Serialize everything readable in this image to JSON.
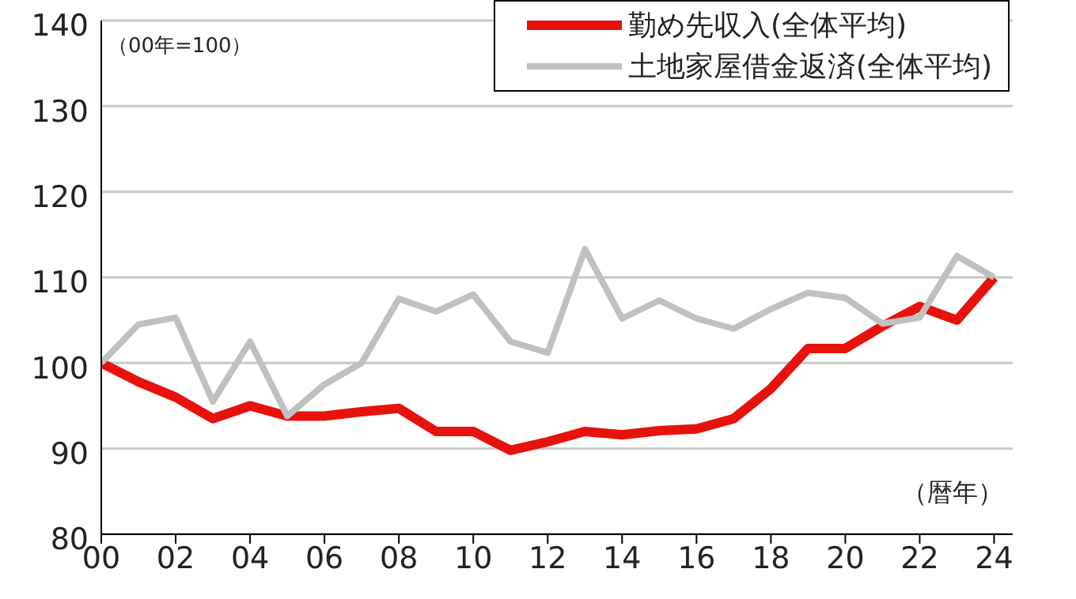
{
  "chart_data": {
    "type": "line",
    "x": [
      0,
      1,
      2,
      3,
      4,
      5,
      6,
      7,
      8,
      9,
      10,
      11,
      12,
      13,
      14,
      15,
      16,
      17,
      18,
      19,
      20,
      21,
      22,
      23,
      24
    ],
    "series": [
      {
        "name": "勤め先収入(全体平均)",
        "color": "#e8120c",
        "values": [
          100,
          97.8,
          96,
          93.5,
          95,
          93.8,
          93.8,
          94.3,
          94.7,
          92,
          92,
          89.8,
          90.8,
          92,
          91.6,
          92.1,
          92.3,
          93.5,
          97,
          101.7,
          101.7,
          104.3,
          106.6,
          105,
          110
        ]
      },
      {
        "name": "土地家屋借金返済(全体平均)",
        "color": "#c0c0c0",
        "values": [
          100,
          104.5,
          105.3,
          95.5,
          102.5,
          93.8,
          97.5,
          100,
          107.5,
          106,
          108,
          102.5,
          101.2,
          113.3,
          105.2,
          107.3,
          105.2,
          104,
          106.3,
          108.2,
          107.6,
          104.6,
          105.3,
          112.5,
          110
        ]
      }
    ],
    "xlim": [
      0,
      24.5
    ],
    "xticks": [
      {
        "value": 0,
        "label": "00"
      },
      {
        "value": 2,
        "label": "02"
      },
      {
        "value": 4,
        "label": "04"
      },
      {
        "value": 6,
        "label": "06"
      },
      {
        "value": 8,
        "label": "08"
      },
      {
        "value": 10,
        "label": "10"
      },
      {
        "value": 12,
        "label": "12"
      },
      {
        "value": 14,
        "label": "14"
      },
      {
        "value": 16,
        "label": "16"
      },
      {
        "value": 18,
        "label": "18"
      },
      {
        "value": 20,
        "label": "20"
      },
      {
        "value": 22,
        "label": "22"
      },
      {
        "value": 24,
        "label": "24"
      }
    ],
    "ylim": [
      80,
      140
    ],
    "yticks": [
      80,
      90,
      100,
      110,
      120,
      130,
      140
    ],
    "grid": "y",
    "legend": "top right",
    "marker": "none",
    "line_style": "solid",
    "annotations": [
      "（00年=100）",
      "（暦年）"
    ]
  }
}
